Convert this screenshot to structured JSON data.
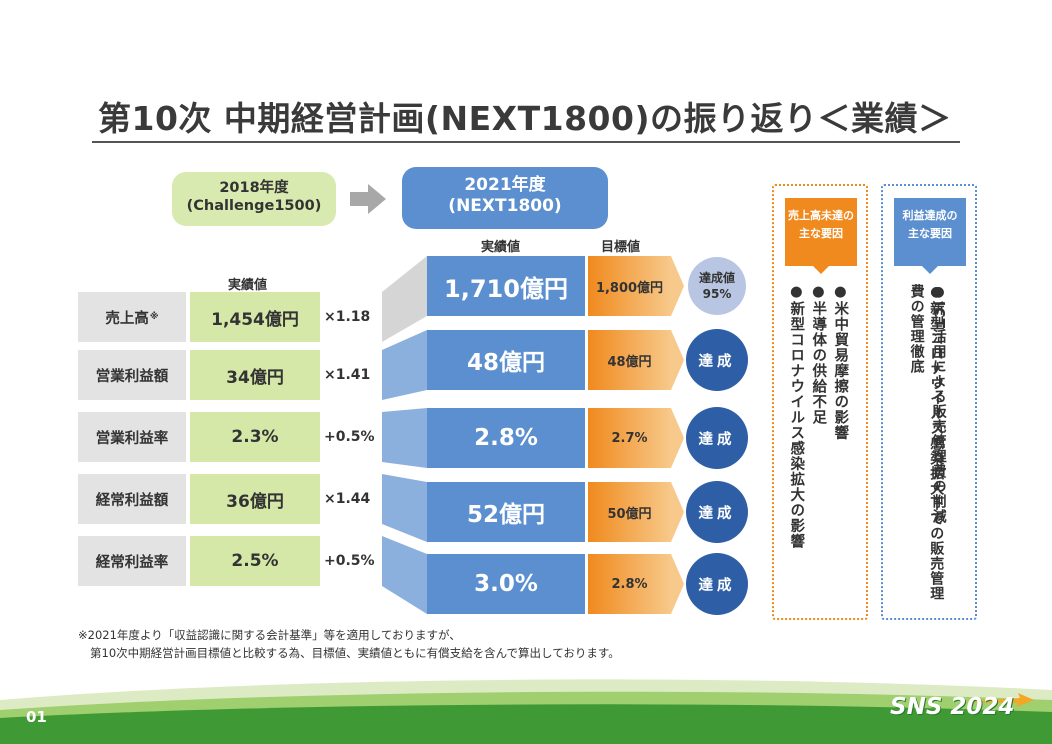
{
  "title": "第10次 中期経営計画(NEXT1800)の振り返り＜業績＞",
  "period_from": {
    "line1": "2018年度",
    "line2": "(Challenge1500)"
  },
  "period_to": {
    "line1": "2021年度",
    "line2": "(NEXT1800)"
  },
  "headers": {
    "actual_2018": "実績値",
    "actual_2021": "実績値",
    "target": "目標値"
  },
  "rows": [
    {
      "label": "売上高",
      "mark": "※",
      "v2018": "1,454億円",
      "ratio": "×1.18",
      "v2021": "1,710億円",
      "target": "1,800億円"
    },
    {
      "label": "営業利益額",
      "mark": "",
      "v2018": "34億円",
      "ratio": "×1.41",
      "v2021": "48億円",
      "target": "48億円"
    },
    {
      "label": "営業利益率",
      "mark": "",
      "v2018": "2.3%",
      "ratio": "+0.5%",
      "v2021": "2.8%",
      "target": "2.7%"
    },
    {
      "label": "経常利益額",
      "mark": "",
      "v2018": "36億円",
      "ratio": "×1.44",
      "v2021": "52億円",
      "target": "50億円"
    },
    {
      "label": "経常利益率",
      "mark": "",
      "v2018": "2.5%",
      "ratio": "+0.5%",
      "v2021": "3.0%",
      "target": "2.8%"
    }
  ],
  "achievement": {
    "line1": "達成値",
    "line2": "95%",
    "achieved_label": "達成"
  },
  "factors_sales": {
    "tag_line1": "売上高未達の",
    "tag_line2": "主な要因",
    "items": [
      "●新型コロナウイルス感染拡大の影響",
      "●半導体の供給不足",
      "●米中貿易摩擦の影響"
    ]
  },
  "factors_profit": {
    "tag_line1": "利益達成の",
    "tag_line2": "主な要因",
    "items": [
      "●新型コロナウイルス感染拡大下での販売管理費の管理徹底",
      "●ICT活用による販売管理費の削減"
    ]
  },
  "footnote": {
    "line1": "※2021年度より「収益認識に関する会計基準」等を適用しておりますが、",
    "line2": "第10次中期経営計画目標値と比較する為、目標値、実績値ともに有償支給を含んで算出しております。"
  },
  "page_number": "01",
  "logo": "SNS 2024",
  "colors": {
    "blue": "#5b8fcf",
    "dark_blue": "#2e5fa6",
    "orange": "#f08a1e",
    "green_light": "#d5e8a8",
    "footer_green": "#3f9a35"
  }
}
